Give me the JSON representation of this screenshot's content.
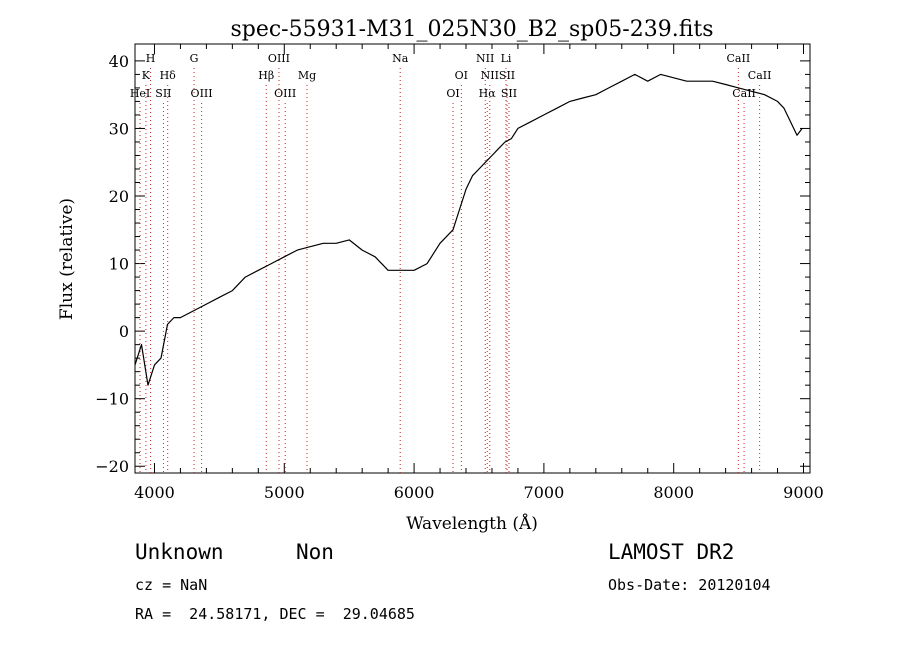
{
  "chart_data": {
    "type": "line",
    "title": "spec-55931-M31_025N30_B2_sp05-239.fits",
    "xlabel": "Wavelength (Å)",
    "ylabel": "Flux (relative)",
    "xlim": [
      3850,
      9050
    ],
    "ylim": [
      -21,
      42.5
    ],
    "xticks": [
      4000,
      5000,
      6000,
      7000,
      8000,
      9000
    ],
    "yticks": [
      -20,
      -10,
      0,
      10,
      20,
      30,
      40
    ],
    "grid": false,
    "series": [
      {
        "x": [
          3850,
          3900,
          3950,
          4000,
          4050,
          4100,
          4150,
          4200,
          4300,
          4400,
          4500,
          4600,
          4700,
          4800,
          4900,
          5000,
          5100,
          5200,
          5300,
          5400,
          5500,
          5600,
          5700,
          5800,
          5900,
          6000,
          6100,
          6200,
          6300,
          6350,
          6400,
          6450,
          6500,
          6550,
          6600,
          6650,
          6700,
          6750,
          6800,
          6900,
          7000,
          7100,
          7200,
          7300,
          7400,
          7500,
          7600,
          7700,
          7800,
          7900,
          8000,
          8100,
          8200,
          8300,
          8400,
          8500,
          8600,
          8700,
          8800,
          8850,
          8900,
          8950,
          8990
        ],
        "y": [
          -5,
          -2,
          -8,
          -5,
          -4,
          1,
          2,
          2,
          3,
          4,
          5,
          6,
          8,
          9,
          10,
          11,
          12,
          12.5,
          13,
          13,
          13.5,
          12,
          11,
          9,
          9,
          9,
          10,
          13,
          15,
          18,
          21,
          23,
          24,
          25,
          26,
          27,
          28,
          28.5,
          30,
          31,
          32,
          33,
          34,
          34.5,
          35,
          36,
          37,
          38,
          37,
          38,
          37.5,
          37,
          37,
          37,
          36.5,
          36,
          35.5,
          35,
          34,
          33,
          31,
          29,
          30
        ]
      }
    ],
    "lines": [
      {
        "label": "H",
        "x": 3970,
        "row": 1
      },
      {
        "label": "K",
        "x": 3934,
        "row": 2
      },
      {
        "label": "HeI",
        "x": 3889,
        "row": 3
      },
      {
        "label": "Hδ",
        "x": 4102,
        "row": 2
      },
      {
        "label": "SII",
        "x": 4069,
        "row": 3
      },
      {
        "label": "G",
        "x": 4305,
        "row": 1
      },
      {
        "label": "OIII",
        "x": 4363,
        "row": 3
      },
      {
        "label": "OIII",
        "x": 4959,
        "row": 1
      },
      {
        "label": "Hβ",
        "x": 4861,
        "row": 2
      },
      {
        "label": "OIII",
        "x": 5007,
        "row": 3
      },
      {
        "label": "Mg",
        "x": 5175,
        "row": 2
      },
      {
        "label": "Na",
        "x": 5893,
        "row": 1
      },
      {
        "label": "OI",
        "x": 6364,
        "row": 2
      },
      {
        "label": "OI",
        "x": 6300,
        "row": 3
      },
      {
        "label": "NII",
        "x": 6548,
        "row": 1
      },
      {
        "label": "NII",
        "x": 6583,
        "row": 2
      },
      {
        "label": "Hα",
        "x": 6563,
        "row": 3
      },
      {
        "label": "SII",
        "x": 6716,
        "row": 2
      },
      {
        "label": "SII",
        "x": 6731,
        "row": 3
      },
      {
        "label": "Li",
        "x": 6708,
        "row": 1
      },
      {
        "label": "CaII",
        "x": 8498,
        "row": 1
      },
      {
        "label": "CaII",
        "x": 8662,
        "row": 2
      },
      {
        "label": "CaII",
        "x": 8542,
        "row": 3
      }
    ]
  },
  "info": {
    "class_label": "Unknown",
    "subclass_label": "Non",
    "survey": "LAMOST DR2",
    "cz": "cz = NaN",
    "obs_date": "Obs-Date: 20120104",
    "ra_dec": "RA =  24.58171, DEC =  29.04685"
  }
}
